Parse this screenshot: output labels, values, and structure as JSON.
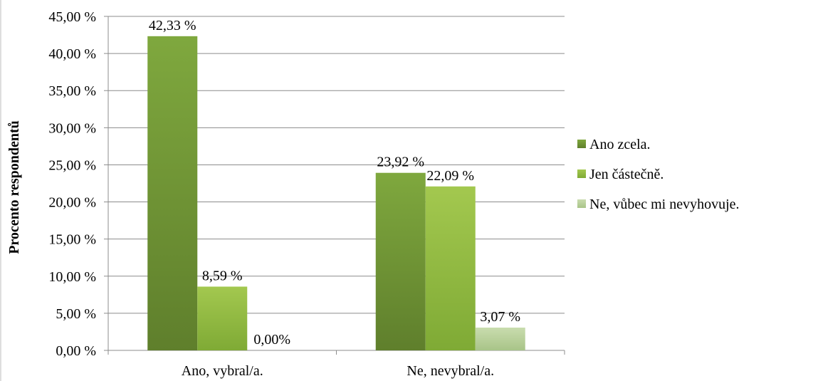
{
  "chart_data": {
    "type": "bar",
    "title": "",
    "xlabel": "",
    "ylabel": "Procento respondentů",
    "ylim": [
      0,
      45
    ],
    "ytick_step": 5,
    "ytick_labels": [
      "0,00 %",
      "5,00 %",
      "10,00 %",
      "15,00 %",
      "20,00 %",
      "25,00 %",
      "30,00 %",
      "35,00 %",
      "40,00 %",
      "45,00 %"
    ],
    "grid": true,
    "legend_position": "right",
    "categories": [
      "Ano, vybral/a.",
      "Ne, nevybral/a."
    ],
    "series": [
      {
        "name": "Ano zcela.",
        "values": [
          42.33,
          23.92
        ],
        "labels": [
          "42,33 %",
          "23,92 %"
        ],
        "color_top": "#7fa83e",
        "color_bottom": "#5f7f2c"
      },
      {
        "name": "Jen částečně.",
        "values": [
          8.59,
          22.09
        ],
        "labels": [
          "8,59 %",
          "22,09 %"
        ],
        "color_top": "#a3c84f",
        "color_bottom": "#7faa35"
      },
      {
        "name": "Ne, vůbec mi nevyhovuje.",
        "values": [
          0.0,
          3.07
        ],
        "labels": [
          "0,00%",
          "3,07 %"
        ],
        "color_top": "#c9dcae",
        "color_bottom": "#a8c488"
      }
    ]
  }
}
